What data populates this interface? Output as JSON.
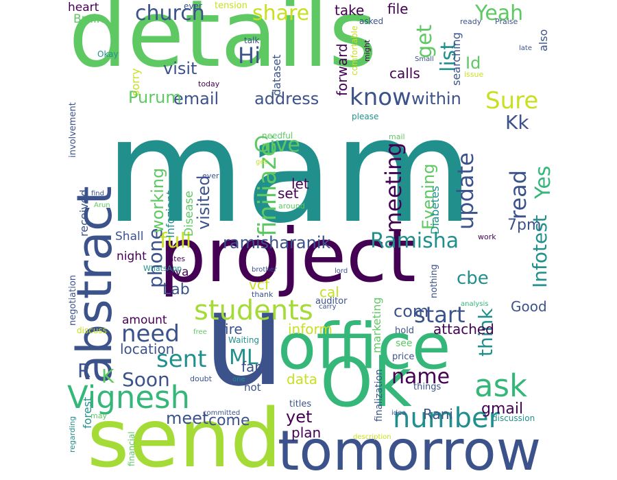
{
  "palette": {
    "yellow": "#d6e21c",
    "lime": "#a5db36",
    "green": "#5ec962",
    "teal": "#21908d",
    "blue": "#3b528b",
    "purple": "#440154",
    "mint": "#35b779",
    "lightlime": "#c8e020"
  },
  "words": [
    {
      "text": "mam",
      "color": "#21908d",
      "vertical": false
    },
    {
      "text": "details",
      "color": "#5ec962",
      "vertical": false
    },
    {
      "text": "project",
      "color": "#440154",
      "vertical": false
    },
    {
      "text": "send",
      "color": "#a5db36",
      "vertical": false
    },
    {
      "text": "u",
      "color": "#3b528b",
      "vertical": false
    },
    {
      "text": "office",
      "color": "#35b779",
      "vertical": false
    },
    {
      "text": "Ok",
      "color": "#35b779",
      "vertical": false
    },
    {
      "text": "tomorrow",
      "color": "#3b528b",
      "vertical": false
    },
    {
      "text": "abstract",
      "color": "#3b528b",
      "vertical": true
    },
    {
      "text": "Vignesh",
      "color": "#35b779",
      "vertical": false
    },
    {
      "text": "students",
      "color": "#a5db36",
      "vertical": false
    },
    {
      "text": "ask",
      "color": "#35b779",
      "vertical": false
    },
    {
      "text": "number",
      "color": "#21908d",
      "vertical": false
    },
    {
      "text": "church",
      "color": "#3b528b",
      "vertical": false
    },
    {
      "text": "share",
      "color": "#c8e020",
      "vertical": false
    },
    {
      "text": "Yeah",
      "color": "#5ec962",
      "vertical": false
    },
    {
      "text": "get",
      "color": "#5ec962",
      "vertical": true
    },
    {
      "text": "list",
      "color": "#21908d",
      "vertical": true
    },
    {
      "text": "know",
      "color": "#3b528b",
      "vertical": false
    },
    {
      "text": "Sure",
      "color": "#c8e020",
      "vertical": false
    },
    {
      "text": "Kk",
      "color": "#3b528b",
      "vertical": false
    },
    {
      "text": "Hi",
      "color": "#3b528b",
      "vertical": false
    },
    {
      "text": "Id",
      "color": "#5ec962",
      "vertical": false
    },
    {
      "text": "visit",
      "color": "#3b528b",
      "vertical": false
    },
    {
      "text": "email",
      "color": "#3b528b",
      "vertical": false
    },
    {
      "text": "address",
      "color": "#3b528b",
      "vertical": false
    },
    {
      "text": "within",
      "color": "#3b528b",
      "vertical": false
    },
    {
      "text": "Purum",
      "color": "#5ec962",
      "vertical": false
    },
    {
      "text": "finiliaze",
      "color": "#5ec962",
      "vertical": true
    },
    {
      "text": "Give",
      "color": "#5ec962",
      "vertical": false
    },
    {
      "text": "meeting",
      "color": "#440154",
      "vertical": true
    },
    {
      "text": "update",
      "color": "#3b528b",
      "vertical": true
    },
    {
      "text": "read",
      "color": "#3b528b",
      "vertical": true
    },
    {
      "text": "Yes",
      "color": "#35b779",
      "vertical": true
    },
    {
      "text": "Infotest",
      "color": "#21908d",
      "vertical": true
    },
    {
      "text": "phone",
      "color": "#3b528b",
      "vertical": true
    },
    {
      "text": "working",
      "color": "#5ec962",
      "vertical": true
    },
    {
      "text": "visited",
      "color": "#3b528b",
      "vertical": true
    },
    {
      "text": "full",
      "color": "#c8e020",
      "vertical": false
    },
    {
      "text": "ramisharanik",
      "color": "#3b528b",
      "vertical": false
    },
    {
      "text": "Ramisha",
      "color": "#21908d",
      "vertical": false
    },
    {
      "text": "Evening",
      "color": "#5ec962",
      "vertical": true
    },
    {
      "text": "7pm",
      "color": "#3b528b",
      "vertical": false
    },
    {
      "text": "need",
      "color": "#3b528b",
      "vertical": false
    },
    {
      "text": "sent",
      "color": "#21908d",
      "vertical": false
    },
    {
      "text": "start",
      "color": "#3b528b",
      "vertical": false
    },
    {
      "text": "think",
      "color": "#21908d",
      "vertical": true
    },
    {
      "text": "cbe",
      "color": "#21908d",
      "vertical": false
    },
    {
      "text": "Lab",
      "color": "#3b528b",
      "vertical": false
    },
    {
      "text": "ML",
      "color": "#21908d",
      "vertical": false
    },
    {
      "text": "name",
      "color": "#440154",
      "vertical": false
    },
    {
      "text": "Soon",
      "color": "#3b528b",
      "vertical": false
    },
    {
      "text": "meet",
      "color": "#3b528b",
      "vertical": false
    },
    {
      "text": "come",
      "color": "#3b528b",
      "vertical": false
    },
    {
      "text": "Rani",
      "color": "#3b528b",
      "vertical": false
    },
    {
      "text": "gmail",
      "color": "#440154",
      "vertical": false
    },
    {
      "text": "yet",
      "color": "#440154",
      "vertical": false
    },
    {
      "text": "plan",
      "color": "#440154",
      "vertical": false
    },
    {
      "text": "com",
      "color": "#3b528b",
      "vertical": false
    },
    {
      "text": "Good",
      "color": "#3b528b",
      "vertical": false
    },
    {
      "text": "location",
      "color": "#3b528b",
      "vertical": false
    },
    {
      "text": "amount",
      "color": "#440154",
      "vertical": false
    },
    {
      "text": "inform",
      "color": "#c8e020",
      "vertical": false
    },
    {
      "text": "attached",
      "color": "#440154",
      "vertical": false
    },
    {
      "text": "fire",
      "color": "#3b528b",
      "vertical": false
    },
    {
      "text": "far",
      "color": "#3b528b",
      "vertical": false
    },
    {
      "text": "data",
      "color": "#c8e020",
      "vertical": false
    },
    {
      "text": "set",
      "color": "#440154",
      "vertical": false
    },
    {
      "text": "let",
      "color": "#440154",
      "vertical": false
    },
    {
      "text": "K",
      "color": "#5ec962",
      "vertical": false
    },
    {
      "text": "R",
      "color": "#3b528b",
      "vertical": false
    },
    {
      "text": "Shall",
      "color": "#3b528b",
      "vertical": false
    },
    {
      "text": "night",
      "color": "#440154",
      "vertical": false
    },
    {
      "text": "ya",
      "color": "#440154",
      "vertical": false
    },
    {
      "text": "vcf",
      "color": "#c8e020",
      "vertical": false
    },
    {
      "text": "cal",
      "color": "#c8e020",
      "vertical": false
    },
    {
      "text": "calls",
      "color": "#440154",
      "vertical": false
    },
    {
      "text": "forward",
      "color": "#440154",
      "vertical": true
    },
    {
      "text": "take",
      "color": "#440154",
      "vertical": false
    },
    {
      "text": "file",
      "color": "#440154",
      "vertical": false
    },
    {
      "text": "heart",
      "color": "#440154",
      "vertical": false
    },
    {
      "text": "Brain",
      "color": "#5ec962",
      "vertical": false
    },
    {
      "text": "sorry",
      "color": "#c8e020",
      "vertical": true
    },
    {
      "text": "dataset",
      "color": "#3b528b",
      "vertical": true
    },
    {
      "text": "searching",
      "color": "#3b528b",
      "vertical": true
    },
    {
      "text": "also",
      "color": "#3b528b",
      "vertical": true
    },
    {
      "text": "received",
      "color": "#3b528b",
      "vertical": true
    },
    {
      "text": "Disease",
      "color": "#5ec962",
      "vertical": true
    },
    {
      "text": "Infoziant",
      "color": "#21908d",
      "vertical": true
    },
    {
      "text": "Diabetes",
      "color": "#21908d",
      "vertical": true
    },
    {
      "text": "marketing",
      "color": "#5ec962",
      "vertical": true
    },
    {
      "text": "forest",
      "color": "#21908d",
      "vertical": true
    },
    {
      "text": "finalization",
      "color": "#3b528b",
      "vertical": true
    },
    {
      "text": "involvement",
      "color": "#3b528b",
      "vertical": true
    },
    {
      "text": "negotiation",
      "color": "#3b528b",
      "vertical": true
    },
    {
      "text": "nothing",
      "color": "#3b528b",
      "vertical": true
    },
    {
      "text": "comfortable",
      "color": "#c8e020",
      "vertical": true
    },
    {
      "text": "might",
      "color": "#440154",
      "vertical": true
    },
    {
      "text": "regarding",
      "color": "#21908d",
      "vertical": true
    },
    {
      "text": "financial",
      "color": "#5ec962",
      "vertical": true
    },
    {
      "text": "tension",
      "color": "#c8e020",
      "vertical": false
    },
    {
      "text": "ever",
      "color": "#3b528b",
      "vertical": false
    },
    {
      "text": "talk",
      "color": "#3b528b",
      "vertical": false
    },
    {
      "text": "asked",
      "color": "#3b528b",
      "vertical": false
    },
    {
      "text": "ready",
      "color": "#3b528b",
      "vertical": false
    },
    {
      "text": "Praise",
      "color": "#3b528b",
      "vertical": false
    },
    {
      "text": "Okay",
      "color": "#21908d",
      "vertical": false
    },
    {
      "text": "Small",
      "color": "#3b528b",
      "vertical": false
    },
    {
      "text": "late",
      "color": "#3b528b",
      "vertical": false
    },
    {
      "text": "today",
      "color": "#440154",
      "vertical": false
    },
    {
      "text": "issue",
      "color": "#c8e020",
      "vertical": false
    },
    {
      "text": "please",
      "color": "#21908d",
      "vertical": false
    },
    {
      "text": "needful",
      "color": "#5ec962",
      "vertical": false
    },
    {
      "text": "mail",
      "color": "#5ec962",
      "vertical": false
    },
    {
      "text": "get",
      "color": "#c8e020",
      "vertical": false
    },
    {
      "text": "ever",
      "color": "#3b528b",
      "vertical": false
    },
    {
      "text": "find",
      "color": "#3b528b",
      "vertical": false
    },
    {
      "text": "Arun",
      "color": "#5ec962",
      "vertical": false
    },
    {
      "text": "around",
      "color": "#5ec962",
      "vertical": false
    },
    {
      "text": "work",
      "color": "#440154",
      "vertical": false
    },
    {
      "text": "rates",
      "color": "#440154",
      "vertical": false
    },
    {
      "text": "WhatsApp",
      "color": "#21908d",
      "vertical": false
    },
    {
      "text": "brother",
      "color": "#3b528b",
      "vertical": false
    },
    {
      "text": "lord",
      "color": "#3b528b",
      "vertical": false
    },
    {
      "text": "thank",
      "color": "#3b528b",
      "vertical": false
    },
    {
      "text": "auditor",
      "color": "#3b528b",
      "vertical": false
    },
    {
      "text": "carry",
      "color": "#3b528b",
      "vertical": false
    },
    {
      "text": "analysis",
      "color": "#35b779",
      "vertical": false
    },
    {
      "text": "discuss",
      "color": "#c8e020",
      "vertical": false
    },
    {
      "text": "free",
      "color": "#5ec962",
      "vertical": false
    },
    {
      "text": "Waiting",
      "color": "#21908d",
      "vertical": false
    },
    {
      "text": "hold",
      "color": "#3b528b",
      "vertical": false
    },
    {
      "text": "see",
      "color": "#5ec962",
      "vertical": false
    },
    {
      "text": "price",
      "color": "#3b528b",
      "vertical": false
    },
    {
      "text": "doubt",
      "color": "#3b528b",
      "vertical": false
    },
    {
      "text": "one",
      "color": "#21908d",
      "vertical": false
    },
    {
      "text": "hot",
      "color": "#3b528b",
      "vertical": false
    },
    {
      "text": "things",
      "color": "#3b528b",
      "vertical": false
    },
    {
      "text": "titles",
      "color": "#3b528b",
      "vertical": false
    },
    {
      "text": "idea",
      "color": "#3b528b",
      "vertical": false
    },
    {
      "text": "may",
      "color": "#5ec962",
      "vertical": false
    },
    {
      "text": "committed",
      "color": "#3b528b",
      "vertical": false
    },
    {
      "text": "discussion",
      "color": "#21908d",
      "vertical": false
    },
    {
      "text": "description",
      "color": "#c8e020",
      "vertical": false
    }
  ]
}
